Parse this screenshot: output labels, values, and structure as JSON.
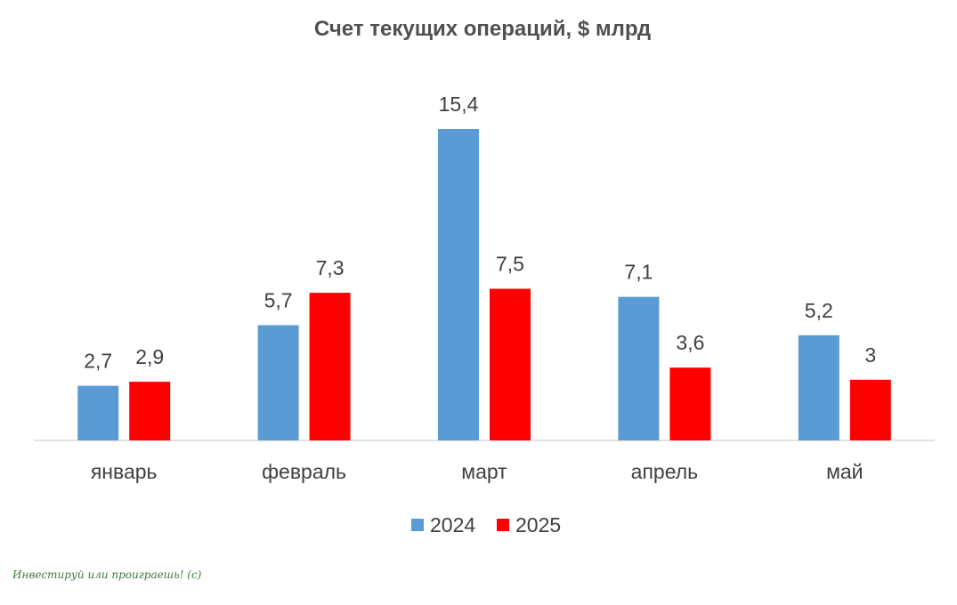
{
  "chart_data": {
    "type": "bar",
    "title": "Счет текущих операций, $ млрд",
    "categories": [
      "январь",
      "февраль",
      "март",
      "апрель",
      "май"
    ],
    "series": [
      {
        "name": "2024",
        "color": "#5B9BD5",
        "values": [
          2.7,
          5.7,
          15.4,
          7.1,
          5.2
        ],
        "labels": [
          "2,7",
          "5,7",
          "15,4",
          "7,1",
          "5,2"
        ]
      },
      {
        "name": "2025",
        "color": "#FF0000",
        "values": [
          2.9,
          7.3,
          7.5,
          3.6,
          3
        ],
        "labels": [
          "2,9",
          "7,3",
          "7,5",
          "3,6",
          "3"
        ]
      }
    ],
    "xlabel": "",
    "ylabel": "",
    "ylim": [
      0,
      15.4
    ],
    "grid": false,
    "legend_position": "bottom",
    "axis_color": "#D9D9D9"
  },
  "watermark": "Инвестируй или проиграешь! (с)"
}
